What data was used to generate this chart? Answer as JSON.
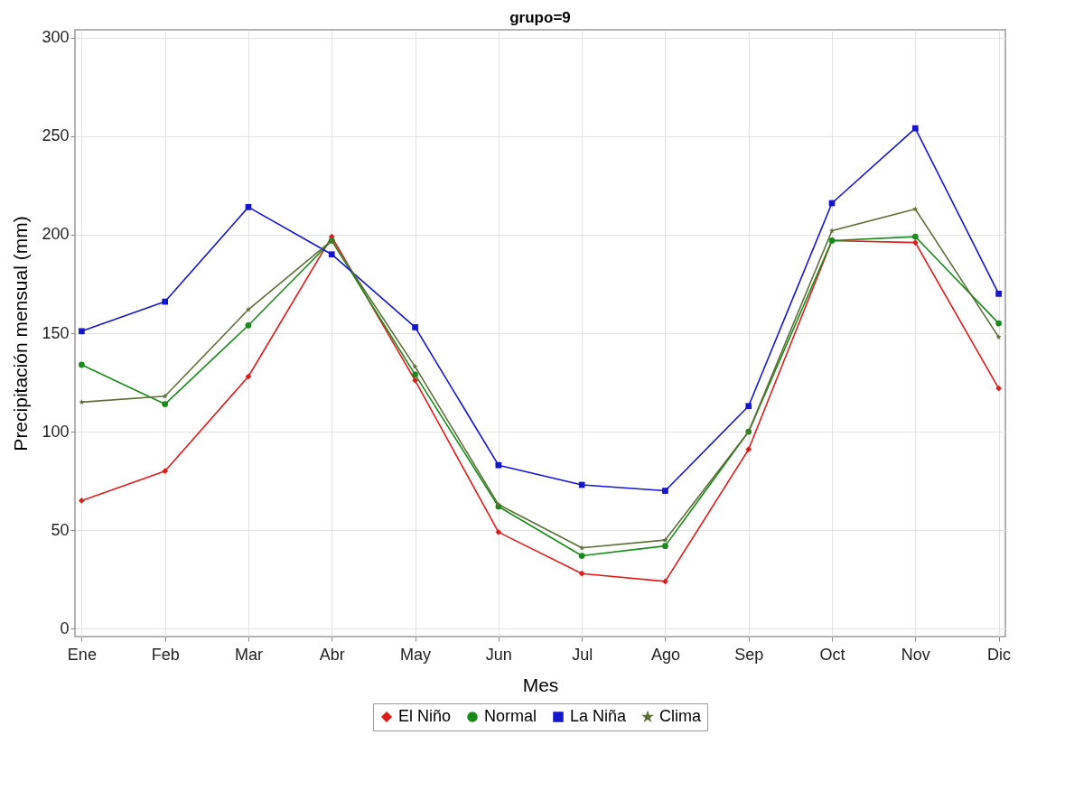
{
  "chart_data": {
    "type": "line",
    "title": "grupo=9",
    "xlabel": "Mes",
    "ylabel": "Precipitación mensual (mm)",
    "categories": [
      "Ene",
      "Feb",
      "Mar",
      "Abr",
      "May",
      "Jun",
      "Jul",
      "Ago",
      "Sep",
      "Oct",
      "Nov",
      "Dic"
    ],
    "series": [
      {
        "name": "El Niño",
        "color": "#dd1c1c",
        "marker": "diamond",
        "values": [
          65,
          80,
          128,
          199,
          126,
          49,
          28,
          24,
          91,
          197,
          196,
          122
        ]
      },
      {
        "name": "Normal",
        "color": "#1a8a1a",
        "marker": "circle",
        "values": [
          134,
          114,
          154,
          197,
          129,
          62,
          37,
          42,
          100,
          197,
          199,
          155
        ]
      },
      {
        "name": "La Niña",
        "color": "#1515cc",
        "marker": "square",
        "values": [
          151,
          166,
          214,
          190,
          153,
          83,
          73,
          70,
          113,
          216,
          254,
          170
        ]
      },
      {
        "name": "Clima",
        "color": "#5e6e38",
        "marker": "star",
        "values": [
          115,
          118,
          162,
          197,
          133,
          63,
          41,
          45,
          100,
          202,
          213,
          148
        ]
      }
    ],
    "ylim": [
      -4,
      304
    ],
    "yticks": [
      0,
      50,
      100,
      150,
      200,
      250,
      300
    ],
    "grid": true,
    "legend": "bottom",
    "line_style": "solid"
  }
}
